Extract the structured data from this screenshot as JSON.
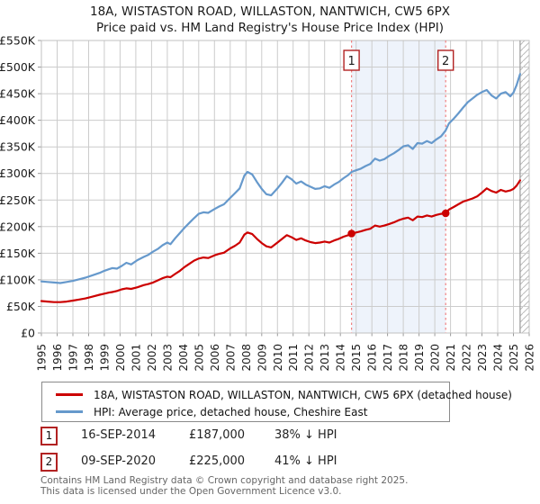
{
  "title": {
    "line1": "18A, WISTASTON ROAD, WILLASTON, NANTWICH, CW5 6PX",
    "line2": "Price paid vs. HM Land Registry's House Price Index (HPI)"
  },
  "legend": {
    "items": [
      {
        "label": "18A, WISTASTON ROAD, WILLASTON, NANTWICH, CW5 6PX (detached house)",
        "color": "#cc0000"
      },
      {
        "label": "HPI: Average price, detached house, Cheshire East",
        "color": "#6699cc"
      }
    ]
  },
  "transactions": [
    {
      "num": "1",
      "date": "16-SEP-2014",
      "price": "£187,000",
      "hpi_note": "38% ↓ HPI"
    },
    {
      "num": "2",
      "date": "09-SEP-2020",
      "price": "£225,000",
      "hpi_note": "41% ↓ HPI"
    }
  ],
  "footer": {
    "line1": "Contains HM Land Registry data © Crown copyright and database right 2025.",
    "line2": "This data is licensed under the Open Government Licence v3.0."
  },
  "chart_data": {
    "type": "line",
    "title": "Price paid vs. HM Land Registry's House Price Index (HPI)",
    "values_unit": "GBP thousands",
    "grid": true,
    "x_axis": {
      "min": 1995,
      "max": 2026,
      "tick_values": [
        1995,
        1996,
        1997,
        1998,
        1999,
        2000,
        2001,
        2002,
        2003,
        2004,
        2005,
        2006,
        2007,
        2008,
        2009,
        2010,
        2011,
        2012,
        2013,
        2014,
        2015,
        2016,
        2017,
        2018,
        2019,
        2020,
        2021,
        2022,
        2023,
        2024,
        2025,
        2026
      ],
      "tick_labels": [
        "1995",
        "1996",
        "1997",
        "1998",
        "1999",
        "2000",
        "2001",
        "2002",
        "2003",
        "2004",
        "2005",
        "2006",
        "2007",
        "2008",
        "2009",
        "2010",
        "2011",
        "2012",
        "2013",
        "2014",
        "2015",
        "2016",
        "2017",
        "2018",
        "2019",
        "2020",
        "2021",
        "2022",
        "2023",
        "2024",
        "2025",
        "2026"
      ]
    },
    "y_axis": {
      "min": 0,
      "max": 550,
      "tick_values": [
        0,
        50,
        100,
        150,
        200,
        250,
        300,
        350,
        400,
        450,
        500,
        550
      ],
      "tick_labels": [
        "£0",
        "£50K",
        "£100K",
        "£150K",
        "£200K",
        "£250K",
        "£300K",
        "£350K",
        "£400K",
        "£450K",
        "£500K",
        "£550K"
      ]
    },
    "series": [
      {
        "name": "HPI: Average price, detached house, Cheshire East",
        "color": "#6699cc",
        "points": [
          [
            1995.0,
            97
          ],
          [
            1995.4,
            96
          ],
          [
            1995.8,
            95
          ],
          [
            1996.2,
            94
          ],
          [
            1996.6,
            96
          ],
          [
            1997.0,
            98
          ],
          [
            1997.4,
            101
          ],
          [
            1997.8,
            104
          ],
          [
            1998.2,
            108
          ],
          [
            1998.7,
            113
          ],
          [
            1999.0,
            117
          ],
          [
            1999.3,
            120
          ],
          [
            1999.5,
            122
          ],
          [
            1999.8,
            121
          ],
          [
            2000.1,
            126
          ],
          [
            2000.4,
            132
          ],
          [
            2000.7,
            129
          ],
          [
            2001.1,
            137
          ],
          [
            2001.5,
            143
          ],
          [
            2001.8,
            147
          ],
          [
            2002.1,
            153
          ],
          [
            2002.4,
            158
          ],
          [
            2002.7,
            165
          ],
          [
            2003.0,
            170
          ],
          [
            2003.2,
            167
          ],
          [
            2003.5,
            178
          ],
          [
            2003.8,
            188
          ],
          [
            2004.1,
            198
          ],
          [
            2004.4,
            207
          ],
          [
            2004.7,
            216
          ],
          [
            2005.0,
            224
          ],
          [
            2005.3,
            227
          ],
          [
            2005.6,
            226
          ],
          [
            2006.0,
            233
          ],
          [
            2006.3,
            238
          ],
          [
            2006.6,
            242
          ],
          [
            2007.0,
            254
          ],
          [
            2007.3,
            263
          ],
          [
            2007.6,
            272
          ],
          [
            2007.9,
            296
          ],
          [
            2008.1,
            303
          ],
          [
            2008.4,
            298
          ],
          [
            2008.7,
            284
          ],
          [
            2009.0,
            271
          ],
          [
            2009.3,
            261
          ],
          [
            2009.6,
            259
          ],
          [
            2010.0,
            272
          ],
          [
            2010.3,
            283
          ],
          [
            2010.6,
            295
          ],
          [
            2010.9,
            289
          ],
          [
            2011.2,
            281
          ],
          [
            2011.5,
            285
          ],
          [
            2011.8,
            279
          ],
          [
            2012.1,
            275
          ],
          [
            2012.4,
            271
          ],
          [
            2012.7,
            272
          ],
          [
            2013.0,
            276
          ],
          [
            2013.3,
            273
          ],
          [
            2013.6,
            279
          ],
          [
            2013.9,
            284
          ],
          [
            2014.2,
            291
          ],
          [
            2014.5,
            297
          ],
          [
            2014.71,
            303
          ],
          [
            2015.0,
            306
          ],
          [
            2015.3,
            309
          ],
          [
            2015.6,
            314
          ],
          [
            2015.9,
            318
          ],
          [
            2016.2,
            328
          ],
          [
            2016.5,
            324
          ],
          [
            2016.8,
            327
          ],
          [
            2017.1,
            333
          ],
          [
            2017.4,
            338
          ],
          [
            2017.7,
            344
          ],
          [
            2018.0,
            351
          ],
          [
            2018.3,
            353
          ],
          [
            2018.6,
            346
          ],
          [
            2018.9,
            357
          ],
          [
            2019.2,
            356
          ],
          [
            2019.5,
            361
          ],
          [
            2019.8,
            357
          ],
          [
            2020.1,
            364
          ],
          [
            2020.4,
            370
          ],
          [
            2020.69,
            381
          ],
          [
            2020.9,
            394
          ],
          [
            2021.2,
            403
          ],
          [
            2021.5,
            413
          ],
          [
            2021.8,
            424
          ],
          [
            2022.1,
            434
          ],
          [
            2022.4,
            441
          ],
          [
            2022.7,
            448
          ],
          [
            2023.0,
            453
          ],
          [
            2023.3,
            457
          ],
          [
            2023.6,
            447
          ],
          [
            2023.9,
            441
          ],
          [
            2024.2,
            450
          ],
          [
            2024.5,
            453
          ],
          [
            2024.8,
            445
          ],
          [
            2025.0,
            452
          ],
          [
            2025.2,
            466
          ],
          [
            2025.42,
            487
          ]
        ]
      },
      {
        "name": "18A, WISTASTON ROAD, WILLASTON, NANTWICH, CW5 6PX (detached house)",
        "color": "#cc0000",
        "points": [
          [
            1995.0,
            60
          ],
          [
            1995.4,
            59
          ],
          [
            1995.8,
            58
          ],
          [
            1996.2,
            58
          ],
          [
            1996.6,
            59
          ],
          [
            1997.0,
            61
          ],
          [
            1997.4,
            63
          ],
          [
            1997.8,
            65
          ],
          [
            1998.2,
            68
          ],
          [
            1998.7,
            72
          ],
          [
            1999.0,
            74
          ],
          [
            1999.3,
            76
          ],
          [
            1999.5,
            77
          ],
          [
            1999.8,
            79
          ],
          [
            2000.1,
            82
          ],
          [
            2000.4,
            84
          ],
          [
            2000.7,
            83
          ],
          [
            2001.1,
            86
          ],
          [
            2001.5,
            90
          ],
          [
            2001.8,
            92
          ],
          [
            2002.1,
            95
          ],
          [
            2002.4,
            99
          ],
          [
            2002.7,
            103
          ],
          [
            2003.0,
            106
          ],
          [
            2003.2,
            105
          ],
          [
            2003.5,
            111
          ],
          [
            2003.8,
            117
          ],
          [
            2004.1,
            124
          ],
          [
            2004.4,
            130
          ],
          [
            2004.7,
            136
          ],
          [
            2005.0,
            140
          ],
          [
            2005.3,
            142
          ],
          [
            2005.6,
            141
          ],
          [
            2006.0,
            146
          ],
          [
            2006.3,
            149
          ],
          [
            2006.6,
            151
          ],
          [
            2007.0,
            159
          ],
          [
            2007.3,
            164
          ],
          [
            2007.6,
            170
          ],
          [
            2007.9,
            185
          ],
          [
            2008.1,
            189
          ],
          [
            2008.4,
            186
          ],
          [
            2008.7,
            177
          ],
          [
            2009.0,
            169
          ],
          [
            2009.3,
            163
          ],
          [
            2009.6,
            161
          ],
          [
            2010.0,
            170
          ],
          [
            2010.3,
            177
          ],
          [
            2010.6,
            184
          ],
          [
            2010.9,
            180
          ],
          [
            2011.2,
            175
          ],
          [
            2011.5,
            178
          ],
          [
            2011.8,
            174
          ],
          [
            2012.1,
            171
          ],
          [
            2012.4,
            169
          ],
          [
            2012.7,
            170
          ],
          [
            2013.0,
            172
          ],
          [
            2013.3,
            170
          ],
          [
            2013.6,
            174
          ],
          [
            2013.9,
            177
          ],
          [
            2014.2,
            181
          ],
          [
            2014.5,
            184
          ],
          [
            2014.71,
            187
          ],
          [
            2015.0,
            189
          ],
          [
            2015.3,
            191
          ],
          [
            2015.6,
            194
          ],
          [
            2015.9,
            196
          ],
          [
            2016.2,
            202
          ],
          [
            2016.5,
            200
          ],
          [
            2016.8,
            202
          ],
          [
            2017.1,
            205
          ],
          [
            2017.4,
            208
          ],
          [
            2017.7,
            212
          ],
          [
            2018.0,
            215
          ],
          [
            2018.3,
            217
          ],
          [
            2018.6,
            212
          ],
          [
            2018.9,
            219
          ],
          [
            2019.2,
            218
          ],
          [
            2019.5,
            221
          ],
          [
            2019.8,
            219
          ],
          [
            2020.1,
            222
          ],
          [
            2020.4,
            224
          ],
          [
            2020.69,
            225
          ],
          [
            2020.9,
            232
          ],
          [
            2021.2,
            237
          ],
          [
            2021.5,
            242
          ],
          [
            2021.8,
            247
          ],
          [
            2022.1,
            250
          ],
          [
            2022.4,
            253
          ],
          [
            2022.7,
            257
          ],
          [
            2023.0,
            264
          ],
          [
            2023.3,
            272
          ],
          [
            2023.6,
            267
          ],
          [
            2023.9,
            264
          ],
          [
            2024.2,
            269
          ],
          [
            2024.5,
            266
          ],
          [
            2024.8,
            268
          ],
          [
            2025.0,
            271
          ],
          [
            2025.2,
            277
          ],
          [
            2025.42,
            287
          ]
        ]
      }
    ],
    "markers": [
      {
        "label": "1",
        "x": 2014.71,
        "y": 187
      },
      {
        "label": "2",
        "x": 2020.69,
        "y": 225
      }
    ],
    "shaded_span": [
      2014.71,
      2020.69
    ],
    "hatch_span": [
      2025.42,
      2026
    ],
    "colors": {
      "grid": "#cccccc",
      "border": "#c0c0c0",
      "tick": "#999999",
      "shade": "#eef3fb",
      "hatch": "#bbbbbb",
      "hatch_edge": "#999999",
      "marker_line": "#f08080",
      "marker_box_border": "#b22222",
      "dot": "#cc0000"
    },
    "legend_position": "bottom"
  }
}
